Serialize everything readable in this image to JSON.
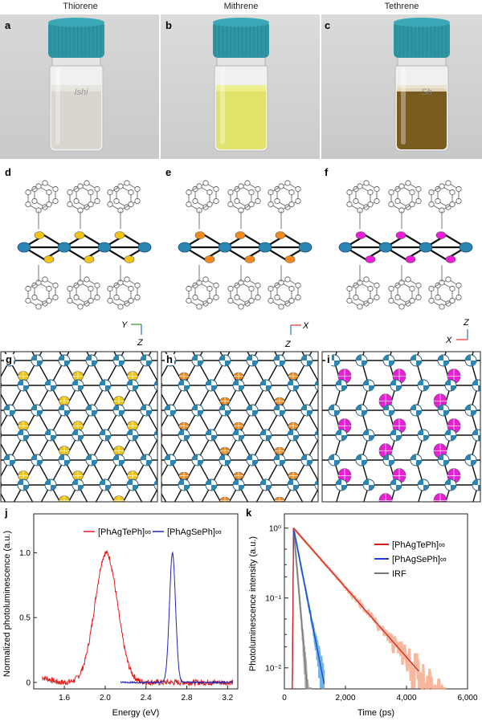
{
  "panels": {
    "a": "a",
    "b": "b",
    "c": "c",
    "d": "d",
    "e": "e",
    "f": "f",
    "g": "g",
    "h": "h",
    "i": "i",
    "j": "j",
    "k": "k"
  },
  "vials": [
    {
      "name": "Thiorene",
      "liquid": "#d9d6cf",
      "liquid_top": "#e7e4de",
      "label_text": "Ishi"
    },
    {
      "name": "Mithrene",
      "liquid": "#dfe36a",
      "liquid_top": "#eef089",
      "label_text": ""
    },
    {
      "name": "Tethrene",
      "liquid": "#7a5b1f",
      "liquid_top": "#e9dfca",
      "label_text": "Sh"
    }
  ],
  "cap_color": "#2f95a3",
  "colors": {
    "sulfur": "#f2c514",
    "selenium": "#f28a1e",
    "tellurium": "#ea1ed6",
    "silver": "#2c86b3"
  },
  "axes_triads": [
    {
      "horizontal": "Y",
      "vertical": "Z"
    },
    {
      "horizontal": "X",
      "vertical": "Z"
    },
    {
      "horizontal": "X",
      "vertical": "Z"
    }
  ],
  "chart_data": [
    {
      "type": "line",
      "xlabel": "Energy (eV)",
      "ylabel": "Normalized photoluminescence (a.u.)",
      "xlim": [
        1.3,
        3.3
      ],
      "ylim": [
        -0.05,
        1.3
      ],
      "xticks": [
        "1.6",
        "2.0",
        "2.4",
        "2.8",
        "3.2"
      ],
      "yticks": [
        "0",
        "0.5",
        "1.0"
      ],
      "legend_placement": "top",
      "series": [
        {
          "name": "[PhAgTePh]∞",
          "color": "#e21b1b",
          "center": 2.01,
          "fwhm": 0.26,
          "xrange": [
            1.38,
            3.25
          ]
        },
        {
          "name": "[PhAgSePh]∞",
          "color": "#2222bb",
          "center": 2.66,
          "fwhm": 0.07,
          "xrange": [
            2.15,
            3.25
          ]
        }
      ]
    },
    {
      "type": "line",
      "xlabel": "Time (ps)",
      "ylabel": "Photoluminescence  intensity (a.u.)",
      "xlim": [
        0,
        6000
      ],
      "ylim": [
        0.005,
        1.6
      ],
      "yscale": "log",
      "xticks": [
        "0",
        "2,000",
        "4,000",
        "6,000"
      ],
      "yticks": [
        "10⁰",
        "10⁻¹",
        "10⁻²"
      ],
      "legend_placement": "top-right",
      "series": [
        {
          "name": "[PhAgTePh]∞",
          "color": "#d42020",
          "data_color": "#f4a585",
          "peak_time": 300,
          "tau": 870,
          "end_time": 5300
        },
        {
          "name": "[PhAgSePh]∞",
          "color": "#1d3fd0",
          "data_color": "#4aa3e0",
          "peak_time": 300,
          "tau": 195,
          "end_time": 1300
        },
        {
          "name": "IRF",
          "color": "#777777",
          "data_color": "#999999",
          "peak_time": 300,
          "tau": 85,
          "end_time": 900
        }
      ]
    }
  ]
}
